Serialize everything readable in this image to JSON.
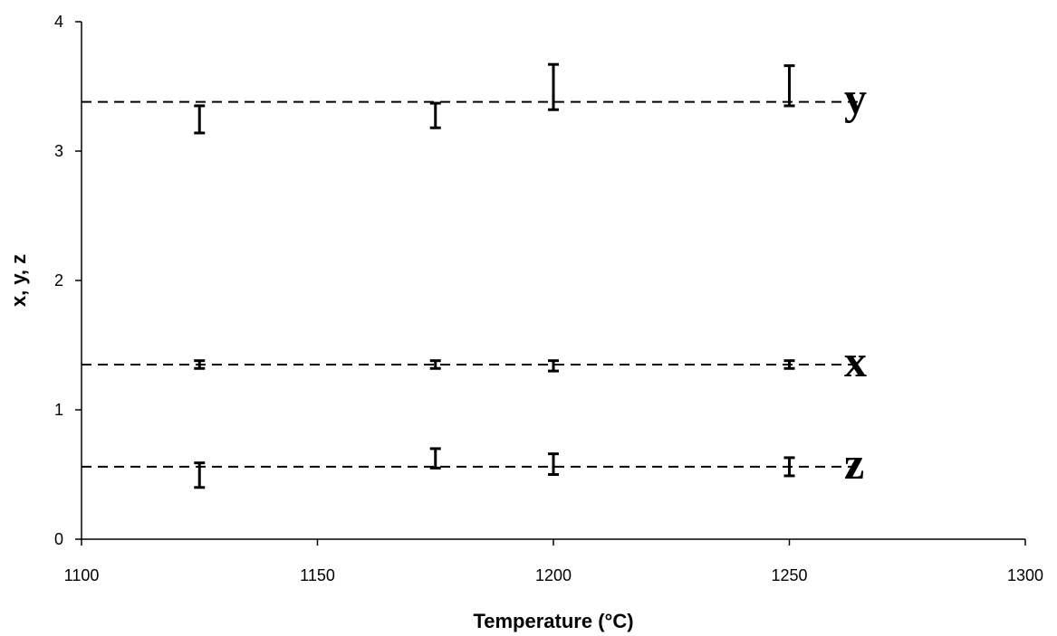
{
  "chart_data": {
    "type": "scatter",
    "title": "",
    "xlabel": "Temperature (°C)",
    "ylabel": "x, y, z",
    "xlim": [
      1100,
      1300
    ],
    "ylim": [
      0,
      4
    ],
    "xticks": [
      "1100",
      "1150",
      "1200",
      "1250",
      "1300"
    ],
    "yticks": [
      "0",
      "1",
      "2",
      "3",
      "4"
    ],
    "grid": false,
    "legend": "none",
    "series": [
      {
        "name": "y",
        "reference_line": 3.38,
        "points": [
          {
            "x": 1125,
            "low": 3.14,
            "high": 3.35
          },
          {
            "x": 1175,
            "low": 3.18,
            "high": 3.37
          },
          {
            "x": 1200,
            "low": 3.32,
            "high": 3.67
          },
          {
            "x": 1250,
            "low": 3.35,
            "high": 3.66
          }
        ]
      },
      {
        "name": "x",
        "reference_line": 1.35,
        "points": [
          {
            "x": 1125,
            "low": 1.32,
            "high": 1.38
          },
          {
            "x": 1175,
            "low": 1.32,
            "high": 1.38
          },
          {
            "x": 1200,
            "low": 1.3,
            "high": 1.38
          },
          {
            "x": 1250,
            "low": 1.32,
            "high": 1.38
          }
        ]
      },
      {
        "name": "z",
        "reference_line": 0.56,
        "points": [
          {
            "x": 1125,
            "low": 0.4,
            "high": 0.59
          },
          {
            "x": 1175,
            "low": 0.55,
            "high": 0.7
          },
          {
            "x": 1200,
            "low": 0.5,
            "high": 0.66
          },
          {
            "x": 1250,
            "low": 0.49,
            "high": 0.63
          }
        ]
      }
    ]
  }
}
